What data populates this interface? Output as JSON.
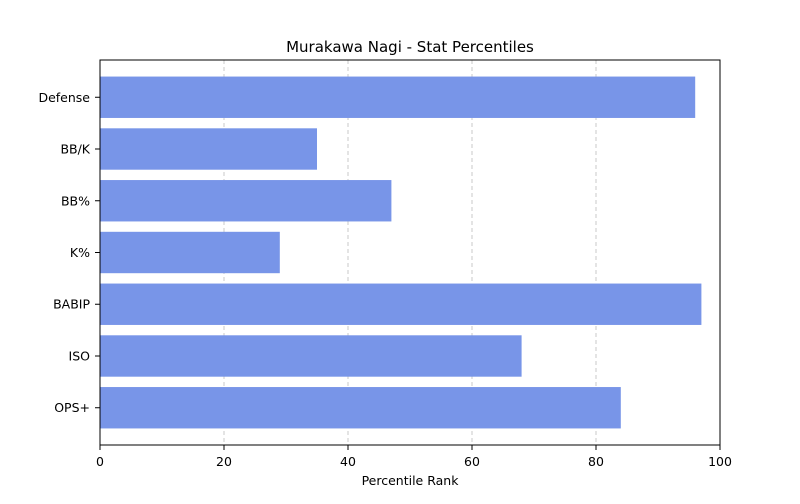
{
  "chart_data": {
    "type": "bar",
    "orientation": "horizontal",
    "title": "Murakawa Nagi - Stat Percentiles",
    "xlabel": "Percentile Rank",
    "ylabel": "",
    "categories": [
      "Defense",
      "BB/K",
      "BB%",
      "K%",
      "BABIP",
      "ISO",
      "OPS+"
    ],
    "values": [
      96,
      35,
      47,
      29,
      97,
      68,
      84
    ],
    "xlim": [
      0,
      100
    ],
    "xticks": [
      0,
      20,
      40,
      60,
      80,
      100
    ],
    "grid": "x-axis dashed",
    "bar_color": "#7895e8"
  }
}
